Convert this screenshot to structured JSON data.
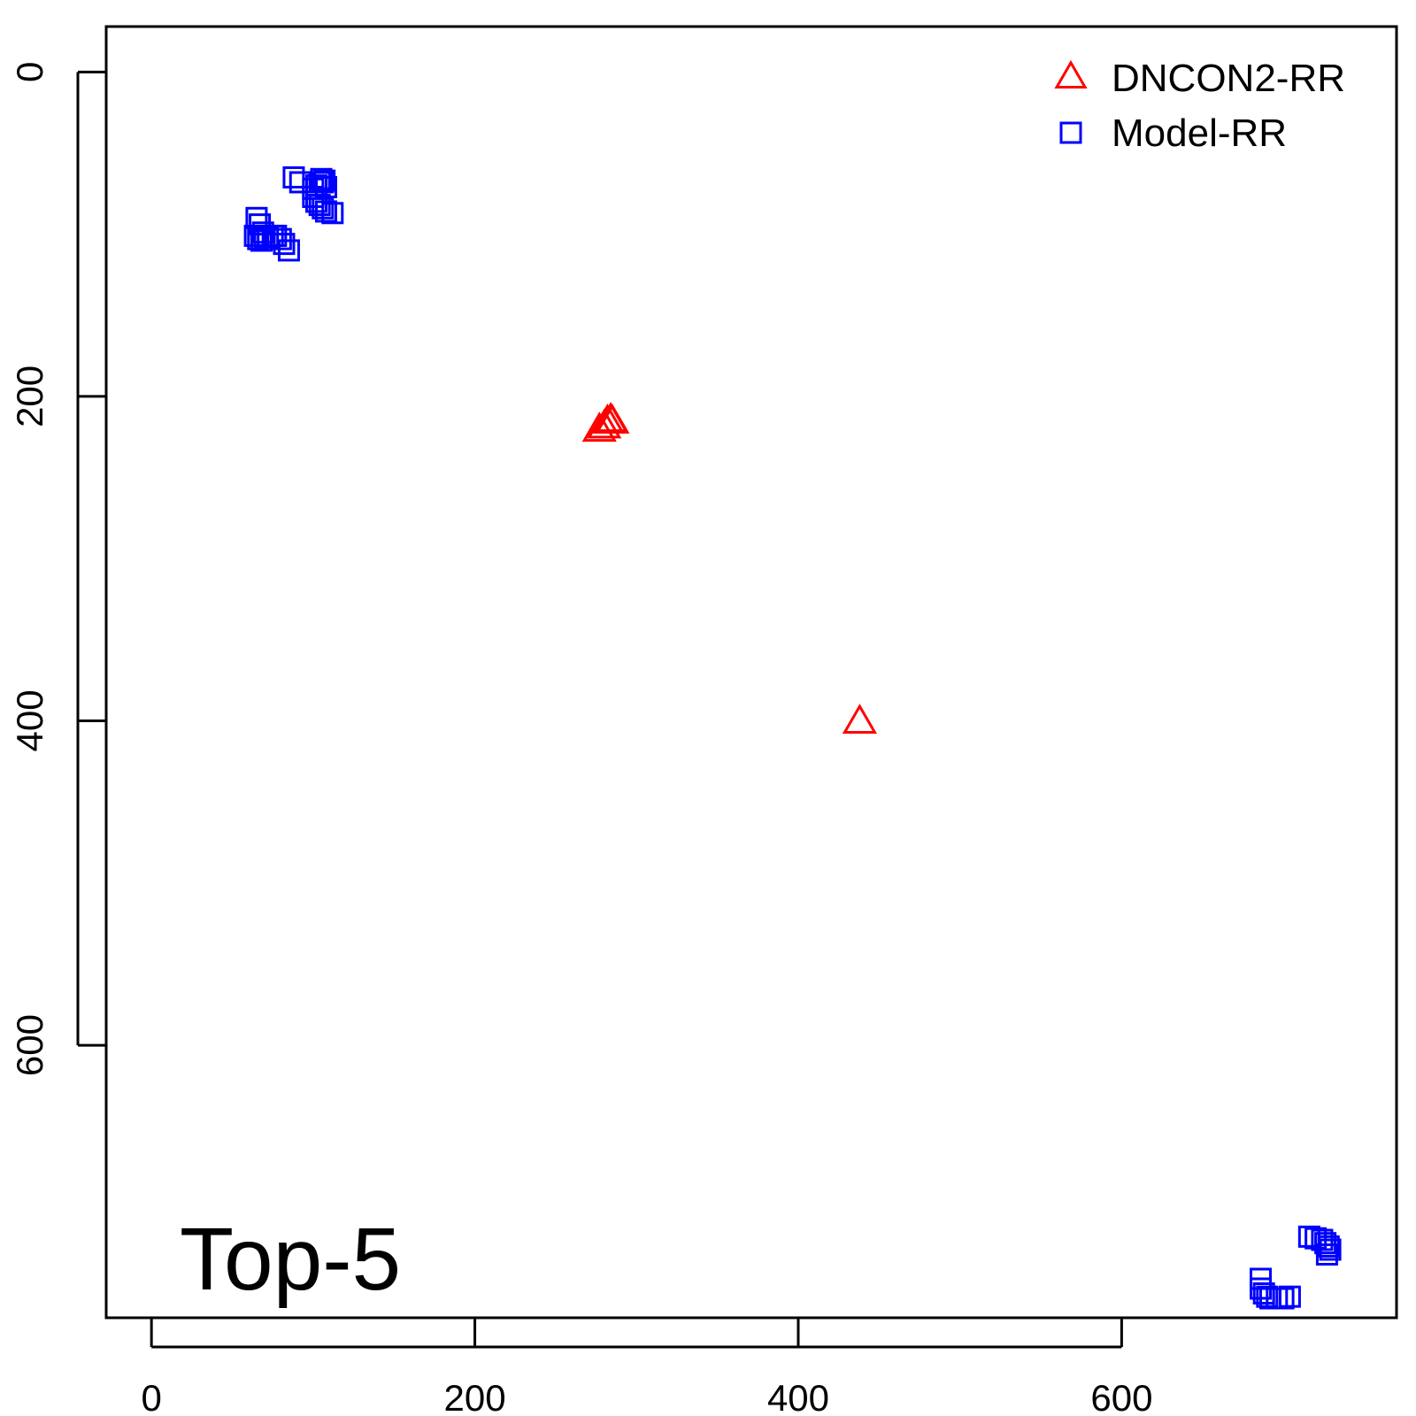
{
  "chart_data": {
    "type": "scatter",
    "title": "",
    "xlabel": "",
    "ylabel": "",
    "xlim": [
      -28,
      770
    ],
    "ylim": [
      -28,
      768
    ],
    "y_reversed": true,
    "x_ticks": [
      0,
      200,
      400,
      600
    ],
    "y_ticks": [
      0,
      200,
      400,
      600
    ],
    "grid": false,
    "legend_position": "top-right",
    "annotation": "Top-5",
    "series": [
      {
        "name": "DNCON2-RR",
        "color": "#ff0000",
        "marker": "triangle",
        "points": [
          [
            277,
            221
          ],
          [
            280,
            219
          ],
          [
            282,
            216
          ],
          [
            284,
            215
          ],
          [
            285,
            216
          ],
          [
            438,
            401
          ]
        ]
      },
      {
        "name": "Model-RR",
        "color": "#0000ff",
        "marker": "square",
        "points": [
          [
            88,
            65
          ],
          [
            92,
            68
          ],
          [
            100,
            72
          ],
          [
            102,
            70
          ],
          [
            104,
            68
          ],
          [
            105,
            66
          ],
          [
            106,
            68
          ],
          [
            107,
            67
          ],
          [
            108,
            71
          ],
          [
            100,
            77
          ],
          [
            102,
            80
          ],
          [
            104,
            82
          ],
          [
            106,
            84
          ],
          [
            108,
            86
          ],
          [
            112,
            87
          ],
          [
            65,
            90
          ],
          [
            67,
            94
          ],
          [
            69,
            99
          ],
          [
            64,
            101
          ],
          [
            66,
            103
          ],
          [
            68,
            104
          ],
          [
            70,
            102
          ],
          [
            72,
            102
          ],
          [
            75,
            101
          ],
          [
            77,
            101
          ],
          [
            80,
            103
          ],
          [
            82,
            106
          ],
          [
            85,
            110
          ],
          [
            686,
            744
          ],
          [
            686,
            750
          ],
          [
            688,
            753
          ],
          [
            690,
            755
          ],
          [
            692,
            756
          ],
          [
            696,
            756
          ],
          [
            700,
            756
          ],
          [
            704,
            755
          ],
          [
            716,
            718
          ],
          [
            720,
            719
          ],
          [
            724,
            720
          ],
          [
            726,
            722
          ],
          [
            728,
            724
          ],
          [
            729,
            726
          ],
          [
            727,
            729
          ]
        ]
      }
    ]
  }
}
